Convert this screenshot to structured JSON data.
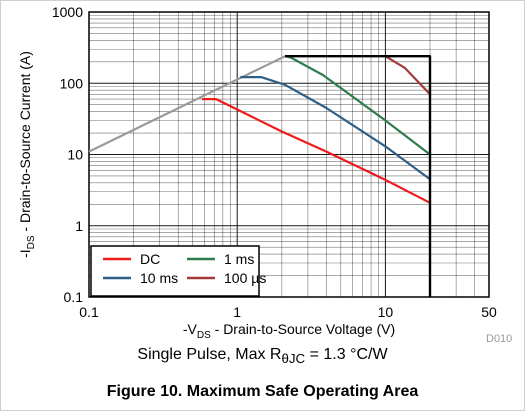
{
  "chart_data": {
    "type": "line",
    "x_scale": "log",
    "y_scale": "log",
    "xlim": [
      0.1,
      50
    ],
    "ylim": [
      0.1,
      1000
    ],
    "x_ticks": [
      {
        "value": 0.1,
        "label": "0.1"
      },
      {
        "value": 1,
        "label": "1"
      },
      {
        "value": 10,
        "label": "10"
      },
      {
        "value": 50,
        "label": "50"
      }
    ],
    "y_ticks": [
      {
        "value": 0.1,
        "label": "0.1"
      },
      {
        "value": 1,
        "label": "1"
      },
      {
        "value": 10,
        "label": "10"
      },
      {
        "value": 100,
        "label": "100"
      },
      {
        "value": 1000,
        "label": "1000"
      }
    ],
    "xlabel": {
      "prefix": "-V",
      "sub": "DS",
      "suffix": " - Drain-to-Source Voltage (V)"
    },
    "ylabel": {
      "prefix": "-I",
      "sub": "DS",
      "suffix": " - Drain-to-Source Current (A)"
    },
    "grid": true,
    "legend_position": "bottom-left",
    "legend": [
      {
        "name": "DC",
        "color": "#ee1c1c"
      },
      {
        "name": "1 ms",
        "color": "#2e7d4f"
      },
      {
        "name": "10 ms",
        "color": "#2f5f86"
      },
      {
        "name": "100 µs",
        "color": "#a33a3a"
      }
    ],
    "limit_boundary": {
      "color": "#000000",
      "x": [
        2.1,
        20,
        20
      ],
      "y": [
        240,
        240,
        0.1
      ]
    },
    "rds_on_limit": {
      "color": "#9a9a9a",
      "x": [
        0.1,
        2.1
      ],
      "y": [
        11,
        240
      ]
    },
    "series": [
      {
        "name": "DC",
        "color": "#ee1c1c",
        "x": [
          0.58,
          0.72,
          2,
          4,
          10,
          20
        ],
        "y": [
          60,
          60,
          21,
          11,
          4.4,
          2.1
        ]
      },
      {
        "name": "10 ms",
        "color": "#2f5f86",
        "x": [
          1.05,
          1.45,
          2.1,
          4,
          10,
          20
        ],
        "y": [
          122,
          122,
          95,
          45,
          13,
          4.5
        ]
      },
      {
        "name": "1 ms",
        "color": "#2e7d4f",
        "x": [
          2.1,
          2.3,
          3.8,
          10,
          20
        ],
        "y": [
          240,
          230,
          130,
          30,
          10
        ]
      },
      {
        "name": "100 µs",
        "color": "#a33a3a",
        "x": [
          10,
          13.5,
          20
        ],
        "y": [
          240,
          165,
          70
        ]
      }
    ]
  },
  "code_label": "D010",
  "subtitle": {
    "prefix": "Single Pulse, Max R",
    "sub": "θJC",
    "suffix": " = 1.3 °C/W"
  },
  "caption": "Figure 10. Maximum Safe Operating Area"
}
